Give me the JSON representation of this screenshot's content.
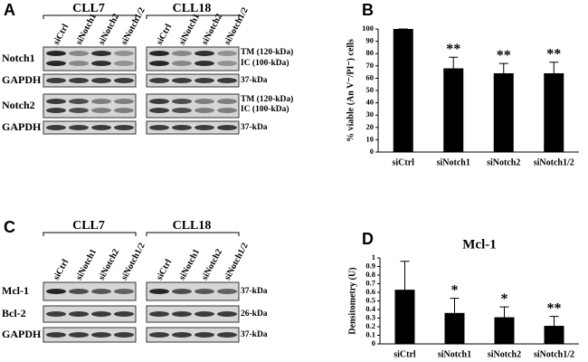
{
  "blot_a": {
    "letter": "A",
    "groups": [
      "CLL7",
      "CLL18"
    ],
    "lanes": [
      "siCtrl",
      "siNotch1",
      "siNotch2",
      "siNotch1/2"
    ],
    "rows": [
      "Notch1",
      "GAPDH",
      "Notch2",
      "GAPDH"
    ],
    "sizes": [
      "TM (120-kDa)",
      "IC (100-kDa)",
      "37-kDa",
      "TM (120-kDa)",
      "IC (100-kDa)",
      "37-kDa"
    ]
  },
  "blot_c": {
    "letter": "C",
    "groups": [
      "CLL7",
      "CLL18"
    ],
    "lanes": [
      "siCtrl",
      "siNotch1",
      "siNotch2",
      "siNotch1/2"
    ],
    "rows": [
      "Mcl-1",
      "Bcl-2",
      "GAPDH"
    ],
    "sizes": [
      "37-kDa",
      "26-kDa",
      "37-kDa"
    ]
  },
  "chart_data": [
    {
      "type": "bar",
      "panel": "B",
      "ylabel": "% viable (An V⁻/PI⁻) cells",
      "categories": [
        "siCtrl",
        "siNotch1",
        "siNotch2",
        "siNotch1/2"
      ],
      "values": [
        100,
        68,
        64,
        64
      ],
      "errors": [
        0,
        9,
        8,
        9
      ],
      "annotations": [
        null,
        "**",
        "**",
        "**"
      ],
      "color": "#000000",
      "ylim": [
        0,
        100
      ],
      "yticks": [
        0,
        10,
        20,
        30,
        40,
        50,
        60,
        70,
        80,
        90,
        100
      ]
    },
    {
      "type": "bar",
      "panel": "D",
      "title": "Mcl-1",
      "ylabel": "Densitometry (U)",
      "categories": [
        "siCtrl",
        "siNotch1",
        "siNotch2",
        "siNotch1/2"
      ],
      "values": [
        0.63,
        0.36,
        0.31,
        0.21
      ],
      "errors": [
        0.33,
        0.17,
        0.12,
        0.11
      ],
      "annotations": [
        null,
        "*",
        "*",
        "**"
      ],
      "color": "#000000",
      "ylim": [
        0,
        1
      ],
      "yticks": [
        0,
        0.1,
        0.2,
        0.3,
        0.4,
        0.5,
        0.6,
        0.7,
        0.8,
        0.9,
        1
      ]
    }
  ]
}
